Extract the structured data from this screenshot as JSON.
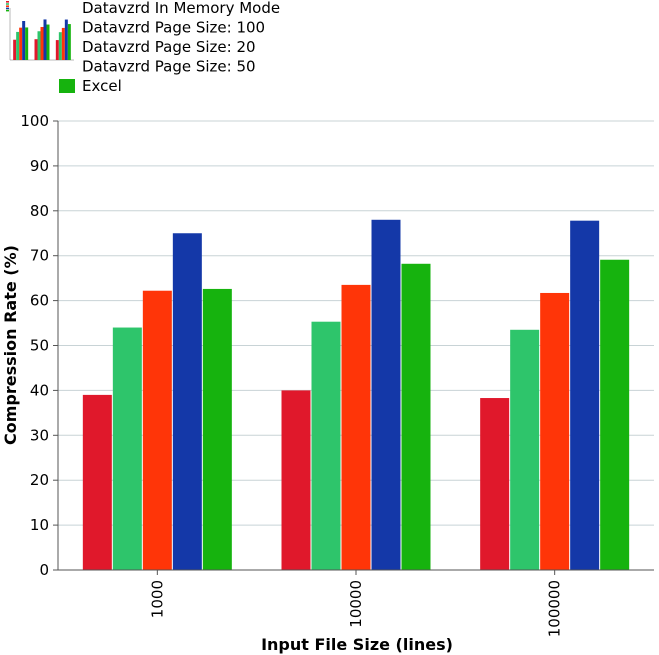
{
  "chart_data": {
    "type": "bar",
    "title": "",
    "xlabel": "Input File Size (lines)",
    "ylabel": "Compression Rate (%)",
    "ylim": [
      0,
      100
    ],
    "yticks": [
      0,
      10,
      20,
      30,
      40,
      50,
      60,
      70,
      80,
      90,
      100
    ],
    "grid": true,
    "legend_position": "top-left",
    "categories": [
      "1000",
      "10000",
      "100000"
    ],
    "series": [
      {
        "name": "Datavzrd In Memory Mode",
        "color": "#e0182b",
        "values": [
          39.0,
          40.0,
          38.3
        ]
      },
      {
        "name": "Datavzrd Page Size: 100",
        "color": "#2ec56b",
        "values": [
          54.0,
          55.3,
          53.5
        ]
      },
      {
        "name": "Datavzrd Page Size: 20",
        "color": "#ff3508",
        "values": [
          62.2,
          63.5,
          61.7
        ]
      },
      {
        "name": "Datavzrd Page Size: 50",
        "color": "#1438a8",
        "values": [
          75.0,
          78.0,
          77.8
        ]
      },
      {
        "name": "Excel",
        "color": "#16b30e",
        "values": [
          62.6,
          68.2,
          69.1
        ]
      }
    ]
  }
}
